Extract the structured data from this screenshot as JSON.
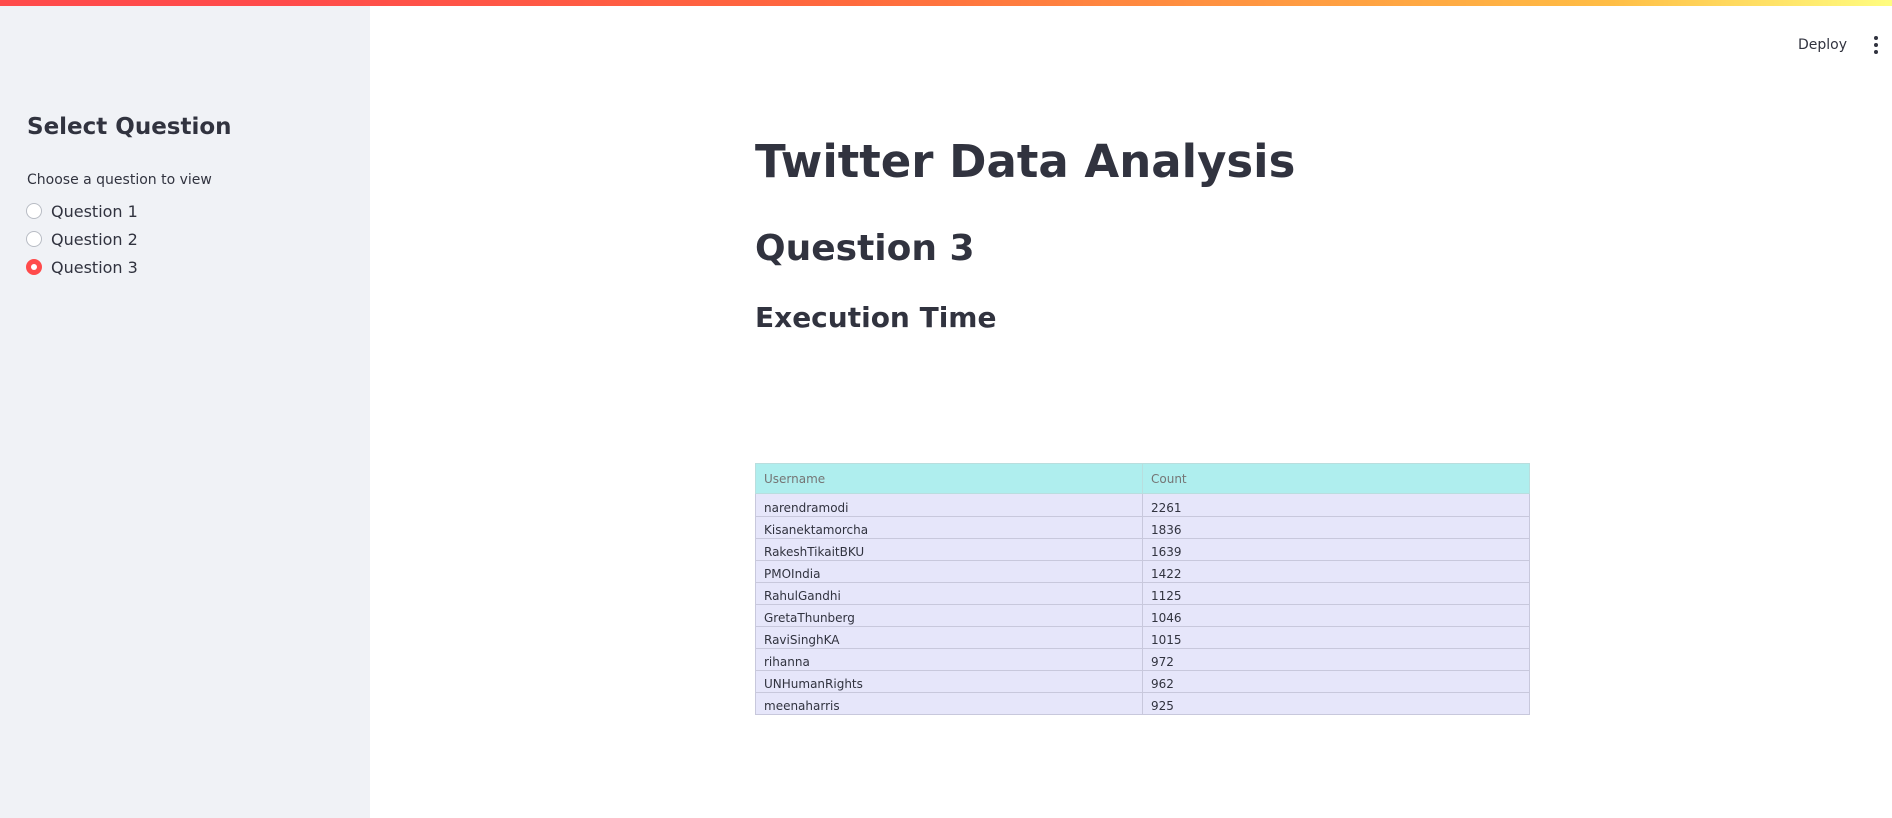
{
  "header": {
    "deploy_label": "Deploy",
    "menu_icon": "vertical-ellipsis-icon"
  },
  "sidebar": {
    "title": "Select Question",
    "radio_label": "Choose a question to view",
    "options": [
      {
        "label": "Question 1",
        "selected": false
      },
      {
        "label": "Question 2",
        "selected": false
      },
      {
        "label": "Question 3",
        "selected": true
      }
    ]
  },
  "main": {
    "title": "Twitter Data Analysis",
    "question_heading": "Question 3",
    "section_heading": "Execution Time",
    "table": {
      "columns": [
        "Username",
        "Count"
      ],
      "rows": [
        [
          "narendramodi",
          "2261"
        ],
        [
          "Kisanektamorcha",
          "1836"
        ],
        [
          "RakeshTikaitBKU",
          "1639"
        ],
        [
          "PMOIndia",
          "1422"
        ],
        [
          "RahulGandhi",
          "1125"
        ],
        [
          "GretaThunberg",
          "1046"
        ],
        [
          "RaviSinghKA",
          "1015"
        ],
        [
          "rihanna",
          "972"
        ],
        [
          "UNHumanRights",
          "962"
        ],
        [
          "meenaharris",
          "925"
        ]
      ]
    }
  },
  "colors": {
    "accent": "#ff4b4b",
    "sidebar_bg": "#f0f2f6",
    "table_header_bg": "#afeeee",
    "table_cell_bg": "#e6e6fa",
    "text": "#31333f"
  }
}
